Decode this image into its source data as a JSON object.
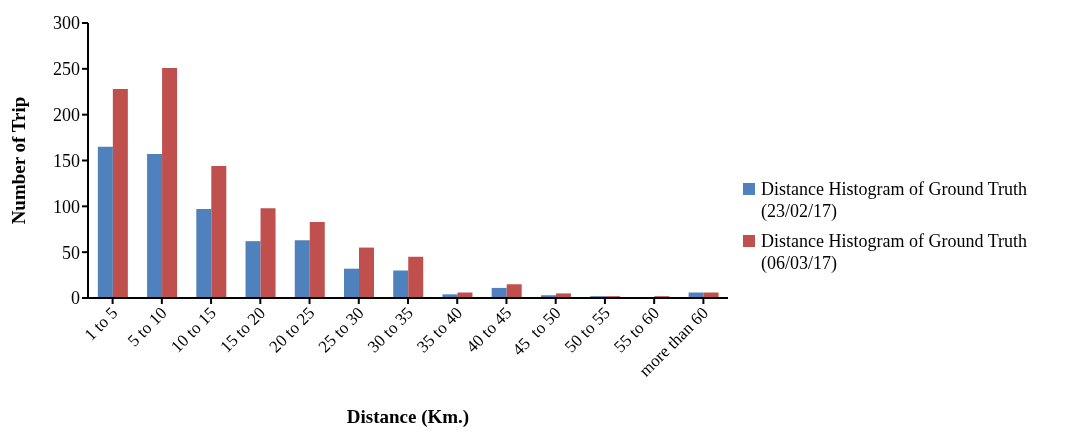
{
  "chart_data": {
    "type": "bar",
    "xlabel": "Distance (Km.)",
    "ylabel": "Number of Trip",
    "categories": [
      "1 to 5",
      "5 to 10",
      "10 to 15",
      "15 to 20",
      "20 to 25",
      "25 to 30",
      "30 to 35",
      "35 to 40",
      "40 to 45",
      "45  to 50",
      "50 to 55",
      "55 to 60",
      "more than 60"
    ],
    "series": [
      {
        "name": "Distance Histogram of Ground Truth (23/02/17)",
        "color": "#4f81bd",
        "values": [
          165,
          157,
          97,
          62,
          63,
          32,
          30,
          4,
          11,
          3,
          2,
          0,
          6
        ]
      },
      {
        "name": "Distance Histogram of Ground Truth (06/03/17)",
        "color": "#c0504d",
        "values": [
          228,
          251,
          144,
          98,
          83,
          55,
          45,
          6,
          15,
          5,
          2,
          2,
          6
        ]
      }
    ],
    "ylim": [
      0,
      300
    ],
    "yticks": [
      0,
      50,
      100,
      150,
      200,
      250,
      300
    ],
    "grid": false,
    "legend": "right"
  }
}
